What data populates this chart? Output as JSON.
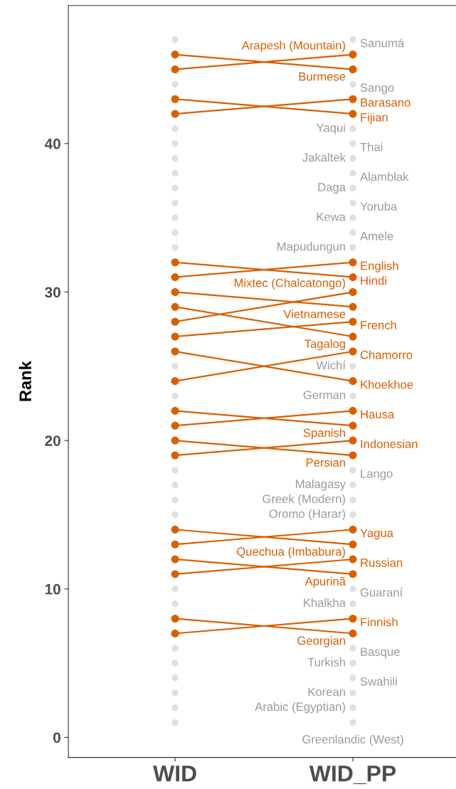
{
  "chart_data": {
    "type": "line",
    "ylabel": "Rank",
    "categories": [
      "WID",
      "WID_PP"
    ],
    "ylim": [
      -1.35,
      49.3
    ],
    "yticks": [
      0,
      10,
      20,
      30,
      40
    ],
    "grid": false,
    "marker": "circle",
    "line_style": "solid",
    "series": [
      {
        "name": "Sanumá",
        "type": "scatter",
        "color": "#e0e0e0",
        "values": [
          47,
          47
        ]
      },
      {
        "name": "Arapesh (Mountain)",
        "color": "#d95f02",
        "values": [
          45,
          46
        ]
      },
      {
        "name": "Burmese",
        "color": "#d95f02",
        "values": [
          46,
          45
        ]
      },
      {
        "name": "Sango",
        "type": "scatter",
        "color": "#e0e0e0",
        "values": [
          44,
          44
        ]
      },
      {
        "name": "Barasano",
        "color": "#d95f02",
        "values": [
          42,
          43
        ]
      },
      {
        "name": "Fijian",
        "color": "#d95f02",
        "values": [
          43,
          42
        ]
      },
      {
        "name": "Yaqui",
        "type": "scatter",
        "color": "#e0e0e0",
        "values": [
          41,
          41
        ]
      },
      {
        "name": "Thai",
        "type": "scatter",
        "color": "#e0e0e0",
        "values": [
          40,
          40
        ]
      },
      {
        "name": "Jakaltek",
        "type": "scatter",
        "color": "#e0e0e0",
        "values": [
          39,
          39
        ]
      },
      {
        "name": "Alamblak",
        "type": "scatter",
        "color": "#e0e0e0",
        "values": [
          38,
          38
        ]
      },
      {
        "name": "Daga",
        "type": "scatter",
        "color": "#e0e0e0",
        "values": [
          37,
          37
        ]
      },
      {
        "name": "Yoruba",
        "type": "scatter",
        "color": "#e0e0e0",
        "values": [
          36,
          36
        ]
      },
      {
        "name": "Kewa",
        "type": "scatter",
        "color": "#e0e0e0",
        "values": [
          35,
          35
        ]
      },
      {
        "name": "Amele",
        "type": "scatter",
        "color": "#e0e0e0",
        "values": [
          34,
          34
        ]
      },
      {
        "name": "Mapudungun",
        "type": "scatter",
        "color": "#e0e0e0",
        "values": [
          33,
          33
        ]
      },
      {
        "name": "English",
        "color": "#d95f02",
        "values": [
          31,
          32
        ]
      },
      {
        "name": "Hindi",
        "color": "#d95f02",
        "values": [
          32,
          31
        ]
      },
      {
        "name": "Mixtec (Chalcatongo)",
        "color": "#d95f02",
        "values": [
          28,
          30
        ]
      },
      {
        "name": "Vietnamese",
        "color": "#d95f02",
        "values": [
          30,
          29
        ]
      },
      {
        "name": "French",
        "color": "#d95f02",
        "values": [
          27,
          28
        ]
      },
      {
        "name": "Tagalog",
        "color": "#d95f02",
        "values": [
          29,
          27
        ]
      },
      {
        "name": "Chamorro",
        "color": "#d95f02",
        "values": [
          24,
          26
        ]
      },
      {
        "name": "Wichí",
        "type": "scatter",
        "color": "#e0e0e0",
        "values": [
          25,
          25
        ]
      },
      {
        "name": "Khoekhoe",
        "color": "#d95f02",
        "values": [
          26,
          24
        ]
      },
      {
        "name": "German",
        "type": "scatter",
        "color": "#e0e0e0",
        "values": [
          23,
          23
        ]
      },
      {
        "name": "Hausa",
        "color": "#d95f02",
        "values": [
          21,
          22
        ]
      },
      {
        "name": "Spanish",
        "color": "#d95f02",
        "values": [
          22,
          21
        ]
      },
      {
        "name": "Indonesian",
        "color": "#d95f02",
        "values": [
          19,
          20
        ]
      },
      {
        "name": "Persian",
        "color": "#d95f02",
        "values": [
          20,
          19
        ]
      },
      {
        "name": "Lango",
        "type": "scatter",
        "color": "#e0e0e0",
        "values": [
          18,
          18
        ]
      },
      {
        "name": "Malagasy",
        "type": "scatter",
        "color": "#e0e0e0",
        "values": [
          17,
          17
        ]
      },
      {
        "name": "Greek (Modern)",
        "type": "scatter",
        "color": "#e0e0e0",
        "values": [
          16,
          16
        ]
      },
      {
        "name": "Oromo (Harar)",
        "type": "scatter",
        "color": "#e0e0e0",
        "values": [
          15,
          15
        ]
      },
      {
        "name": "Yagua",
        "color": "#d95f02",
        "values": [
          13,
          14
        ]
      },
      {
        "name": "Quechua (Imbabura)",
        "color": "#d95f02",
        "values": [
          14,
          13
        ]
      },
      {
        "name": "Russian",
        "color": "#d95f02",
        "values": [
          11,
          12
        ]
      },
      {
        "name": "Apurinã",
        "color": "#d95f02",
        "values": [
          12,
          11
        ]
      },
      {
        "name": "Guaraní",
        "type": "scatter",
        "color": "#e0e0e0",
        "values": [
          10,
          10
        ]
      },
      {
        "name": "Khalkha",
        "type": "scatter",
        "color": "#e0e0e0",
        "values": [
          9,
          9
        ]
      },
      {
        "name": "Finnish",
        "color": "#d95f02",
        "values": [
          7,
          8
        ]
      },
      {
        "name": "Georgian",
        "color": "#d95f02",
        "values": [
          8,
          7
        ]
      },
      {
        "name": "Basque",
        "type": "scatter",
        "color": "#e0e0e0",
        "values": [
          6,
          6
        ]
      },
      {
        "name": "Turkish",
        "type": "scatter",
        "color": "#e0e0e0",
        "values": [
          5,
          5
        ]
      },
      {
        "name": "Swahili",
        "type": "scatter",
        "color": "#e0e0e0",
        "values": [
          4,
          4
        ]
      },
      {
        "name": "Korean",
        "type": "scatter",
        "color": "#e0e0e0",
        "values": [
          3,
          3
        ]
      },
      {
        "name": "Arabic (Egyptian)",
        "type": "scatter",
        "color": "#e0e0e0",
        "values": [
          2,
          2
        ]
      },
      {
        "name": "Greenlandic (West)",
        "type": "scatter",
        "color": "#e0e0e0",
        "values": [
          1,
          1
        ]
      }
    ]
  }
}
